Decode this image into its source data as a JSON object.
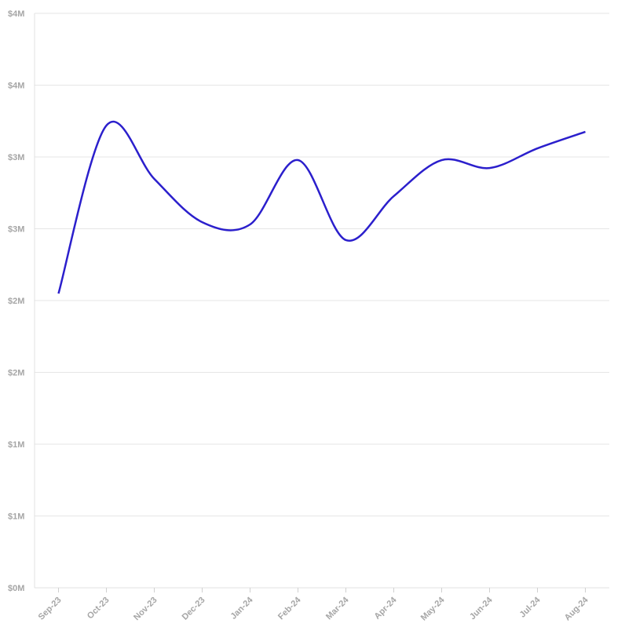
{
  "chart_data": {
    "type": "line",
    "categories": [
      "Sep-23",
      "Oct-23",
      "Nov-23",
      "Dec-23",
      "Jan-24",
      "Feb-24",
      "Mar-24",
      "Apr-24",
      "May-24",
      "Jun-24",
      "Jul-24",
      "Aug-24"
    ],
    "series": [
      {
        "color": "#2b1fcc",
        "values": [
          2049000,
          3219000,
          2847000,
          2546000,
          2530000,
          2978000,
          2421000,
          2727000,
          2978000,
          2923000,
          3060000,
          3175000
        ]
      }
    ],
    "ylim": [
      0,
      4000000
    ],
    "yticks": [
      {
        "value": 0,
        "label": "$0M"
      },
      {
        "value": 500000,
        "label": "$1M"
      },
      {
        "value": 1000000,
        "label": "$1M"
      },
      {
        "value": 1500000,
        "label": "$2M"
      },
      {
        "value": 2000000,
        "label": "$2M"
      },
      {
        "value": 2500000,
        "label": "$3M"
      },
      {
        "value": 3000000,
        "label": "$3M"
      },
      {
        "value": 3500000,
        "label": "$4M"
      },
      {
        "value": 4000000,
        "label": "$4M"
      }
    ],
    "grid": true
  }
}
